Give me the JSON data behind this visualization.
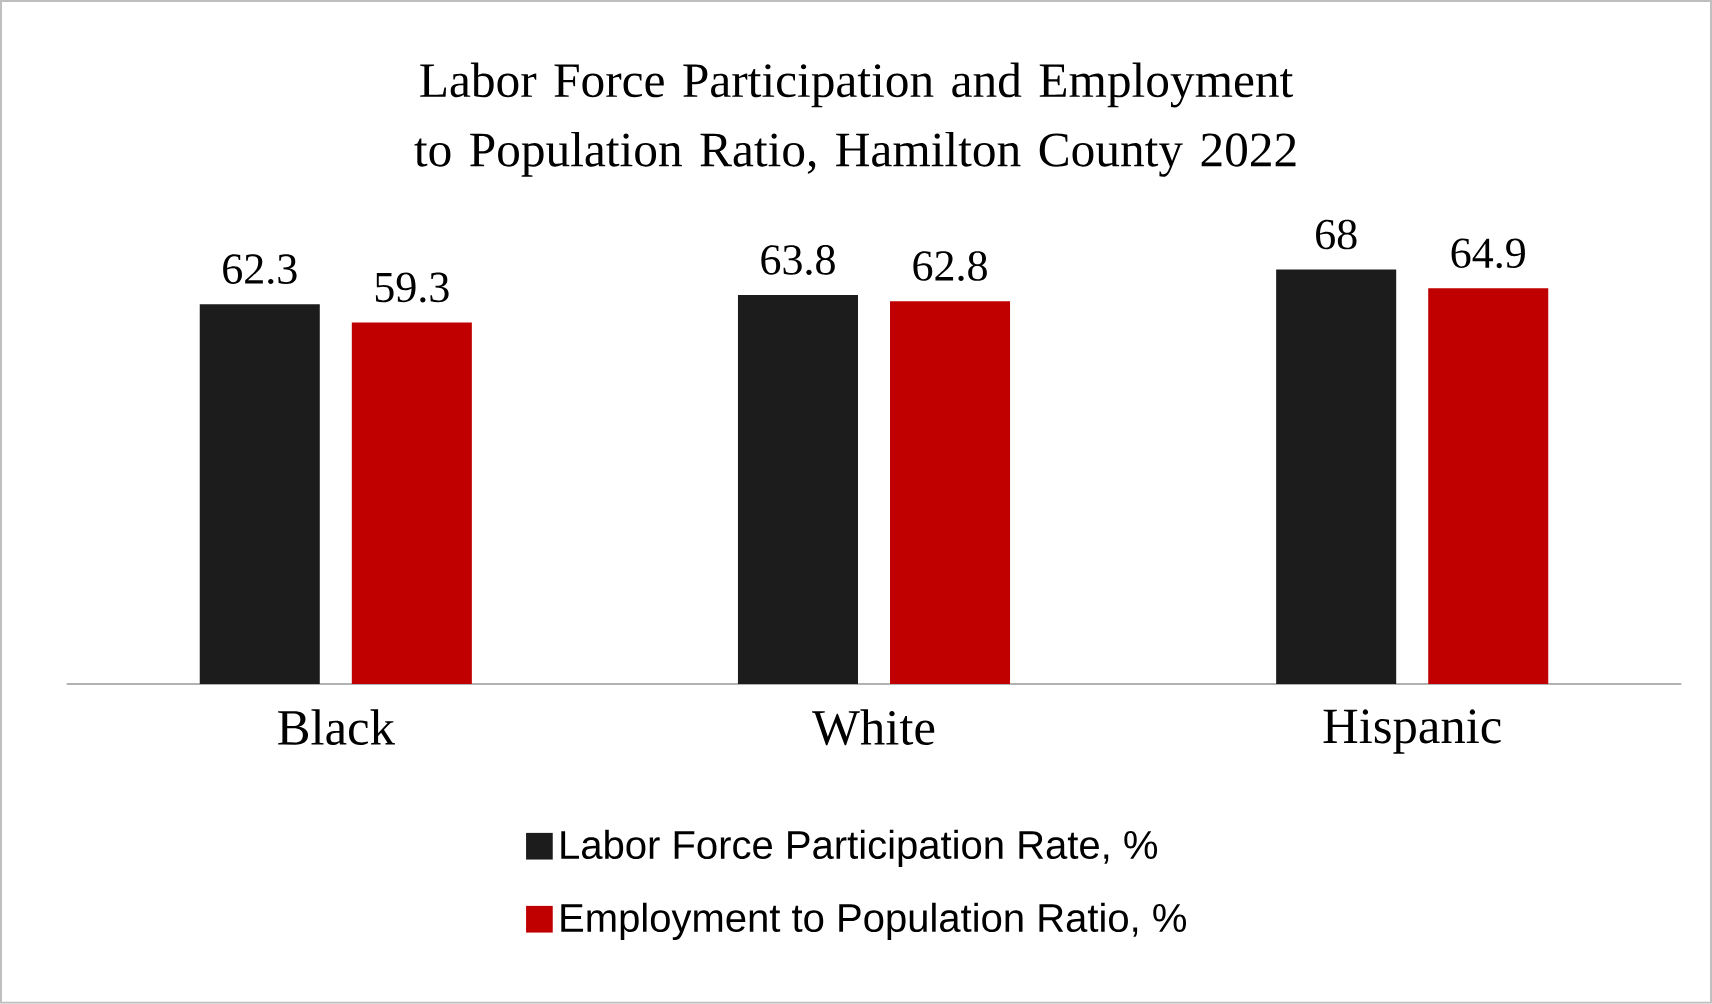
{
  "chart_data": {
    "type": "bar",
    "title": "Labor Force Participation and Employment to Population Ratio, Hamilton County 2022",
    "categories": [
      "Black",
      "White",
      "Hispanic"
    ],
    "series": [
      {
        "name": "Labor Force Participation Rate, %",
        "color": "#1c1c1c",
        "values": [
          62.3,
          63.8,
          68
        ]
      },
      {
        "name": "Employment to Population Ratio, %",
        "color": "#c00000",
        "values": [
          59.3,
          62.8,
          64.9
        ]
      }
    ],
    "tick_labels": "x",
    "data_labels": true,
    "legend": "bottom"
  }
}
